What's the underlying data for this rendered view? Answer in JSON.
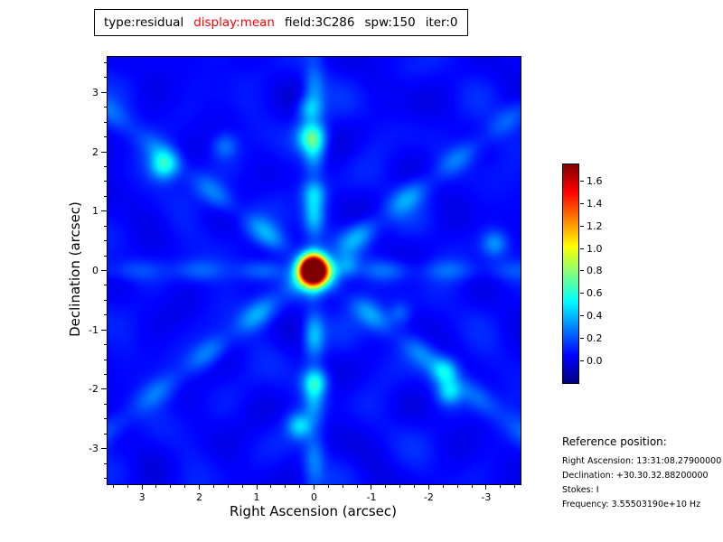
{
  "title_bar": {
    "segments": [
      {
        "label": "type:residual",
        "color": "#000000"
      },
      {
        "label": "display:mean",
        "color": "#ff0000"
      },
      {
        "label": "field:3C286",
        "color": "#000000"
      },
      {
        "label": "spw:150",
        "color": "#000000"
      },
      {
        "label": "iter:0",
        "color": "#000000"
      }
    ]
  },
  "chart_data": {
    "type": "heatmap",
    "title": "type:residual display:mean field:3C286 spw:150 iter:0",
    "xlabel": "Right Ascension (arcsec)",
    "ylabel": "Declination (arcsec)",
    "xlim": [
      3.6,
      -3.6
    ],
    "ylim": [
      -3.6,
      3.6
    ],
    "x_ticks": [
      3,
      2,
      1,
      0,
      -1,
      -2,
      -3
    ],
    "y_ticks": [
      -3,
      -2,
      -1,
      0,
      1,
      2,
      3
    ],
    "colormap": "jet",
    "value_range": [
      -0.2,
      1.75
    ],
    "colorbar_ticks": [
      1.6,
      1.4,
      1.2,
      1.0,
      0.8,
      0.6,
      0.4,
      0.2,
      0.0
    ],
    "peak": {
      "x": 0.02,
      "y": 0.02,
      "amplitude": 1.75,
      "sigma_arcsec": 0.16
    },
    "description": "Interferometric residual sky image: bright unresolved source at field center (dark red core with yellow-green ring), cross-shaped sidelobe arms (vertical, horizontal, two diagonals) with periodic cyan-green knots, faint ripple texture on dark blue background.",
    "render": {
      "base": 0.05,
      "ripples": [
        [
          0.035,
          3.96,
          3.96,
          1.2,
          0.99,
          -0.99,
          -0.4
        ],
        [
          0.035,
          3.96,
          -3.96,
          -0.8,
          0.85,
          0.85,
          0.5
        ],
        [
          0.022,
          0,
          4.8,
          0.4,
          2.1,
          0,
          1.1
        ],
        [
          0.02,
          3.1,
          -1.7,
          2.2,
          0,
          0,
          0
        ]
      ],
      "arms": [
        {
          "vertical": true,
          "slope": 0,
          "sigma": 0.13,
          "base": 0.1,
          "amp": 0.4,
          "period": 1.05,
          "decay": 3.2,
          "phase": 0.2
        },
        {
          "vertical": false,
          "slope": 0.0,
          "sigma": 0.13,
          "base": 0.07,
          "amp": 0.22,
          "period": 1.1,
          "decay": 3.0,
          "phase": 0.5
        },
        {
          "vertical": false,
          "slope": 0.75,
          "sigma": 0.15,
          "base": 0.09,
          "amp": 0.32,
          "period": 1.15,
          "decay": 3.5,
          "phase": 0.3
        },
        {
          "vertical": false,
          "slope": -0.75,
          "sigma": 0.15,
          "base": 0.09,
          "amp": 0.34,
          "period": 1.1,
          "decay": 3.5,
          "phase": -0.4
        }
      ],
      "blobs": [
        {
          "x": 0.05,
          "y": 2.25,
          "a": 0.5,
          "s": 0.18
        },
        {
          "x": 0.0,
          "y": 1.32,
          "a": 0.24,
          "s": 0.15
        },
        {
          "x": -0.02,
          "y": -1.87,
          "a": 0.4,
          "s": 0.16
        },
        {
          "x": 0.25,
          "y": -2.62,
          "a": 0.38,
          "s": 0.15
        },
        {
          "x": 2.62,
          "y": 1.77,
          "a": 0.45,
          "s": 0.17
        },
        {
          "x": -2.28,
          "y": -1.7,
          "a": 0.4,
          "s": 0.16
        },
        {
          "x": -2.36,
          "y": -2.05,
          "a": 0.36,
          "s": 0.15
        },
        {
          "x": -3.15,
          "y": 0.45,
          "a": 0.28,
          "s": 0.16
        },
        {
          "x": 1.55,
          "y": 2.1,
          "a": 0.2,
          "s": 0.15
        },
        {
          "x": -1.5,
          "y": -0.72,
          "a": 0.18,
          "s": 0.14
        },
        {
          "x": 0.08,
          "y": 2.72,
          "a": 0.3,
          "s": 0.15
        },
        {
          "x": -0.6,
          "y": 0.1,
          "a": 0.2,
          "s": 0.14
        }
      ]
    }
  },
  "reference": {
    "heading": "Reference position:",
    "lines": [
      "Right Ascension: 13:31:08.27900000",
      "Declination: +30.30.32.88200000",
      "Stokes: I",
      "Frequency: 3.55503190e+10 Hz"
    ]
  }
}
